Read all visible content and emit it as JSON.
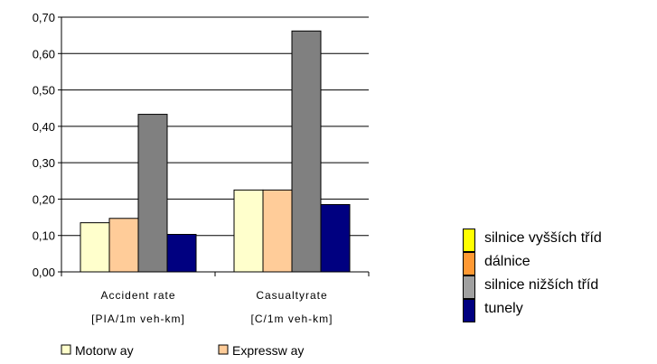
{
  "chart_data": {
    "type": "bar",
    "categories": [
      {
        "line1": "Accident rate",
        "line2": "[PIA/1m veh-km]"
      },
      {
        "line1": "Casualtyrate",
        "line2": "[C/1m veh-km]"
      }
    ],
    "series": [
      {
        "name": "Motorw ay",
        "color": "#FFFFCC",
        "values": [
          0.135,
          0.225
        ]
      },
      {
        "name": "Expressw ay",
        "color": "#FFCC99",
        "values": [
          0.147,
          0.225
        ]
      },
      {
        "name": "",
        "color": "#808080",
        "values": [
          0.433,
          0.662
        ]
      },
      {
        "name": "",
        "color": "#000080",
        "values": [
          0.103,
          0.185
        ]
      }
    ],
    "ylim": [
      0,
      0.7
    ],
    "yticks": [
      "0,00",
      "0,10",
      "0,20",
      "0,30",
      "0,40",
      "0,50",
      "0,60",
      "0,70"
    ],
    "grid": true,
    "legend_position": "bottom",
    "overlay_legend": {
      "items": [
        {
          "label": "silnice vyšších tříd",
          "color": "#FFFF00"
        },
        {
          "label": "dálnice",
          "color": "#FF9933"
        },
        {
          "label": "silnice nižších tříd",
          "color": "#A0A0A0"
        },
        {
          "label": "tunely",
          "color": "#000080"
        }
      ]
    }
  }
}
